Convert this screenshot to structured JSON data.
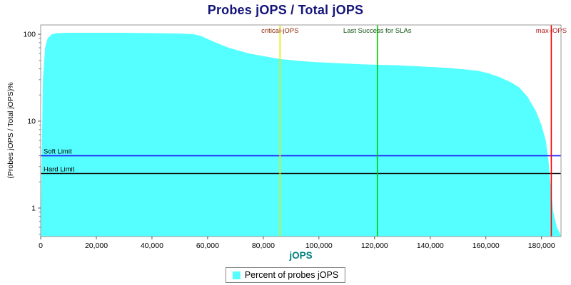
{
  "colors": {
    "title": "#14147a",
    "x_axis_title": "#008080",
    "plot_border": "#9a9a9a",
    "tick_color": "#555555",
    "tick_label": "#000000",
    "background": "#ffffff"
  },
  "chart_data": {
    "type": "area",
    "title": "Probes jOPS / Total jOPS",
    "xlabel": "jOPS",
    "ylabel": "(Probes jOPS / Total jOPS)%",
    "x_scale": "linear",
    "y_scale": "log",
    "grid": false,
    "xlim": [
      0,
      187000
    ],
    "ylim": [
      0.47,
      128
    ],
    "x_ticks": [
      {
        "value": 0,
        "label": "0"
      },
      {
        "value": 20000,
        "label": "20,000"
      },
      {
        "value": 40000,
        "label": "40,000"
      },
      {
        "value": 60000,
        "label": "60,000"
      },
      {
        "value": 80000,
        "label": "80,000"
      },
      {
        "value": 100000,
        "label": "100,000"
      },
      {
        "value": 120000,
        "label": "120,000"
      },
      {
        "value": 140000,
        "label": "140,000"
      },
      {
        "value": 160000,
        "label": "160,000"
      },
      {
        "value": 180000,
        "label": "180,000"
      }
    ],
    "y_ticks": [
      {
        "value": 1,
        "label": "1"
      },
      {
        "value": 10,
        "label": "10"
      },
      {
        "value": 100,
        "label": "100"
      }
    ],
    "y_minor_ticks": [
      0.5,
      0.6,
      0.7,
      0.8,
      0.9,
      2,
      3,
      4,
      5,
      6,
      7,
      8,
      9,
      20,
      30,
      40,
      50,
      60,
      70,
      80,
      90
    ],
    "series": [
      {
        "name": "Percent of probes jOPS",
        "color": "#55ffff",
        "x": [
          0,
          800,
          1600,
          2500,
          4000,
          6000,
          10000,
          15000,
          20000,
          30000,
          40000,
          50000,
          55000,
          57500,
          60000,
          63000,
          67000,
          71000,
          75000,
          80000,
          86000,
          92000,
          98000,
          104000,
          110000,
          116000,
          122000,
          128000,
          134000,
          140000,
          146000,
          152000,
          157000,
          161000,
          165000,
          169000,
          172000,
          175000,
          178000,
          180000,
          181500,
          182500,
          183300,
          184200,
          185500,
          186800
        ],
        "y": [
          0.55,
          30,
          70,
          90,
          100,
          103,
          104,
          104,
          104,
          104,
          103,
          102,
          100,
          96,
          88,
          80,
          71,
          65,
          60,
          56,
          52,
          49.5,
          48,
          47,
          46,
          45,
          44.5,
          44,
          43,
          42,
          41,
          39.5,
          38,
          35.5,
          32,
          28,
          24.5,
          19,
          13,
          9,
          6,
          3.5,
          1.8,
          0.9,
          0.6,
          0.5
        ]
      }
    ],
    "vertical_markers": [
      {
        "label": "critical-jOPS",
        "x": 86000,
        "line_color": "#e8e800",
        "label_color": "#8b2500"
      },
      {
        "label": "Last Success for SLAs",
        "x": 121000,
        "line_color": "#00cc00",
        "label_color": "#105210"
      },
      {
        "label": "max-jOPS",
        "x": 183500,
        "line_color": "#ff0000",
        "label_color": "#b01818"
      }
    ],
    "horizontal_markers": [
      {
        "label": "Soft Limit",
        "y": 4.0,
        "line_color": "#2020ff",
        "label_color": "#000000"
      },
      {
        "label": "Hard Limit",
        "y": 2.5,
        "line_color": "#111111",
        "label_color": "#000000"
      }
    ],
    "legend": {
      "position": "bottom-center",
      "entries": [
        {
          "label": "Percent of probes jOPS",
          "color": "#55ffff"
        }
      ]
    }
  }
}
